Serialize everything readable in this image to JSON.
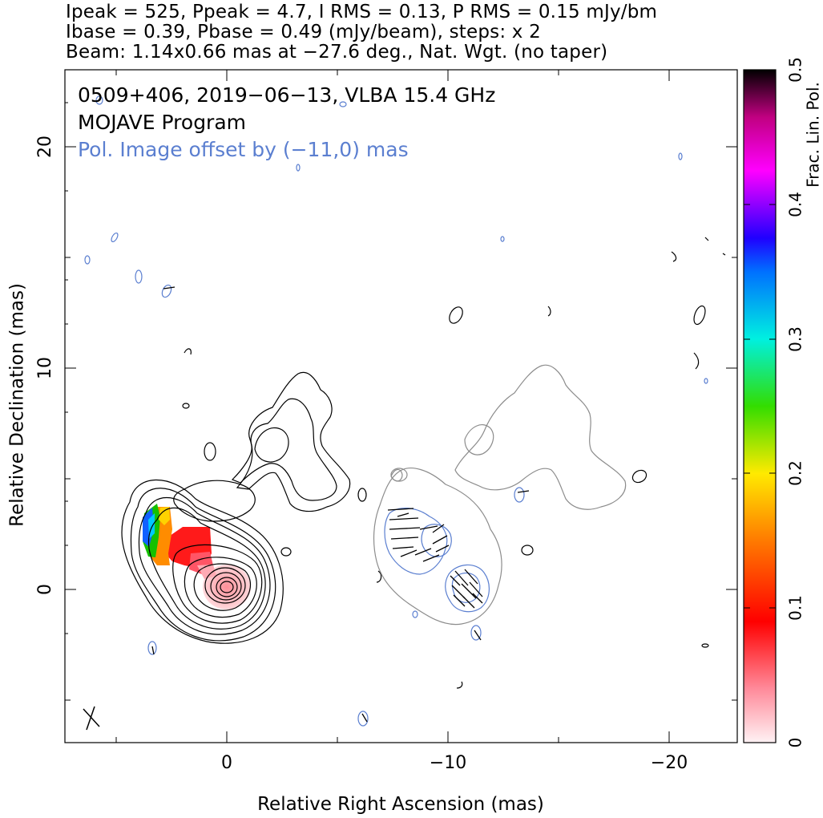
{
  "header": {
    "line1": "Ipeak = 525, Ppeak = 4.7, I RMS = 0.13, P RMS = 0.15 mJy/bm",
    "line2": "Ibase = 0.39, Pbase = 0.49 (mJy/beam), steps: x 2",
    "line3": "Beam: 1.14x0.66 mas at −27.6 deg., Nat. Wgt. (no taper)"
  },
  "annotations": {
    "source": "0509+406, 2019−06−13, VLBA 15.4 GHz",
    "program": "MOJAVE Program",
    "offset_note": "Pol. Image offset by (−11,0) mas"
  },
  "colors": {
    "stokes_i_contour": "#000000",
    "pol_contour": "#5b7fd0",
    "offset_total_contour": "#8c8c8c",
    "offset_note_text": "#5b7fd0"
  },
  "chart_data": {
    "type": "contour",
    "xlabel": "Relative Right Ascension (mas)",
    "ylabel": "Relative Declination (mas)",
    "xlim": [
      7.2,
      -23.1
    ],
    "ylim": [
      -6.8,
      23.8
    ],
    "x_ticks": [
      0,
      -10,
      -20
    ],
    "x_tick_labels": [
      "0",
      "−10",
      "−20"
    ],
    "y_ticks": [
      0,
      10,
      20
    ],
    "y_tick_labels": [
      "0",
      "10",
      "20"
    ],
    "core_position": [
      0,
      0
    ],
    "pol_offset": [
      -11,
      0
    ],
    "colorbar": {
      "label": "Frac. Lin. Pol.",
      "range": [
        0,
        0.5
      ],
      "ticks": [
        0,
        0.1,
        0.2,
        0.3,
        0.4,
        0.5
      ],
      "tick_labels": [
        "0",
        "0.1",
        "0.2",
        "0.3",
        "0.4",
        "0.5"
      ]
    }
  }
}
